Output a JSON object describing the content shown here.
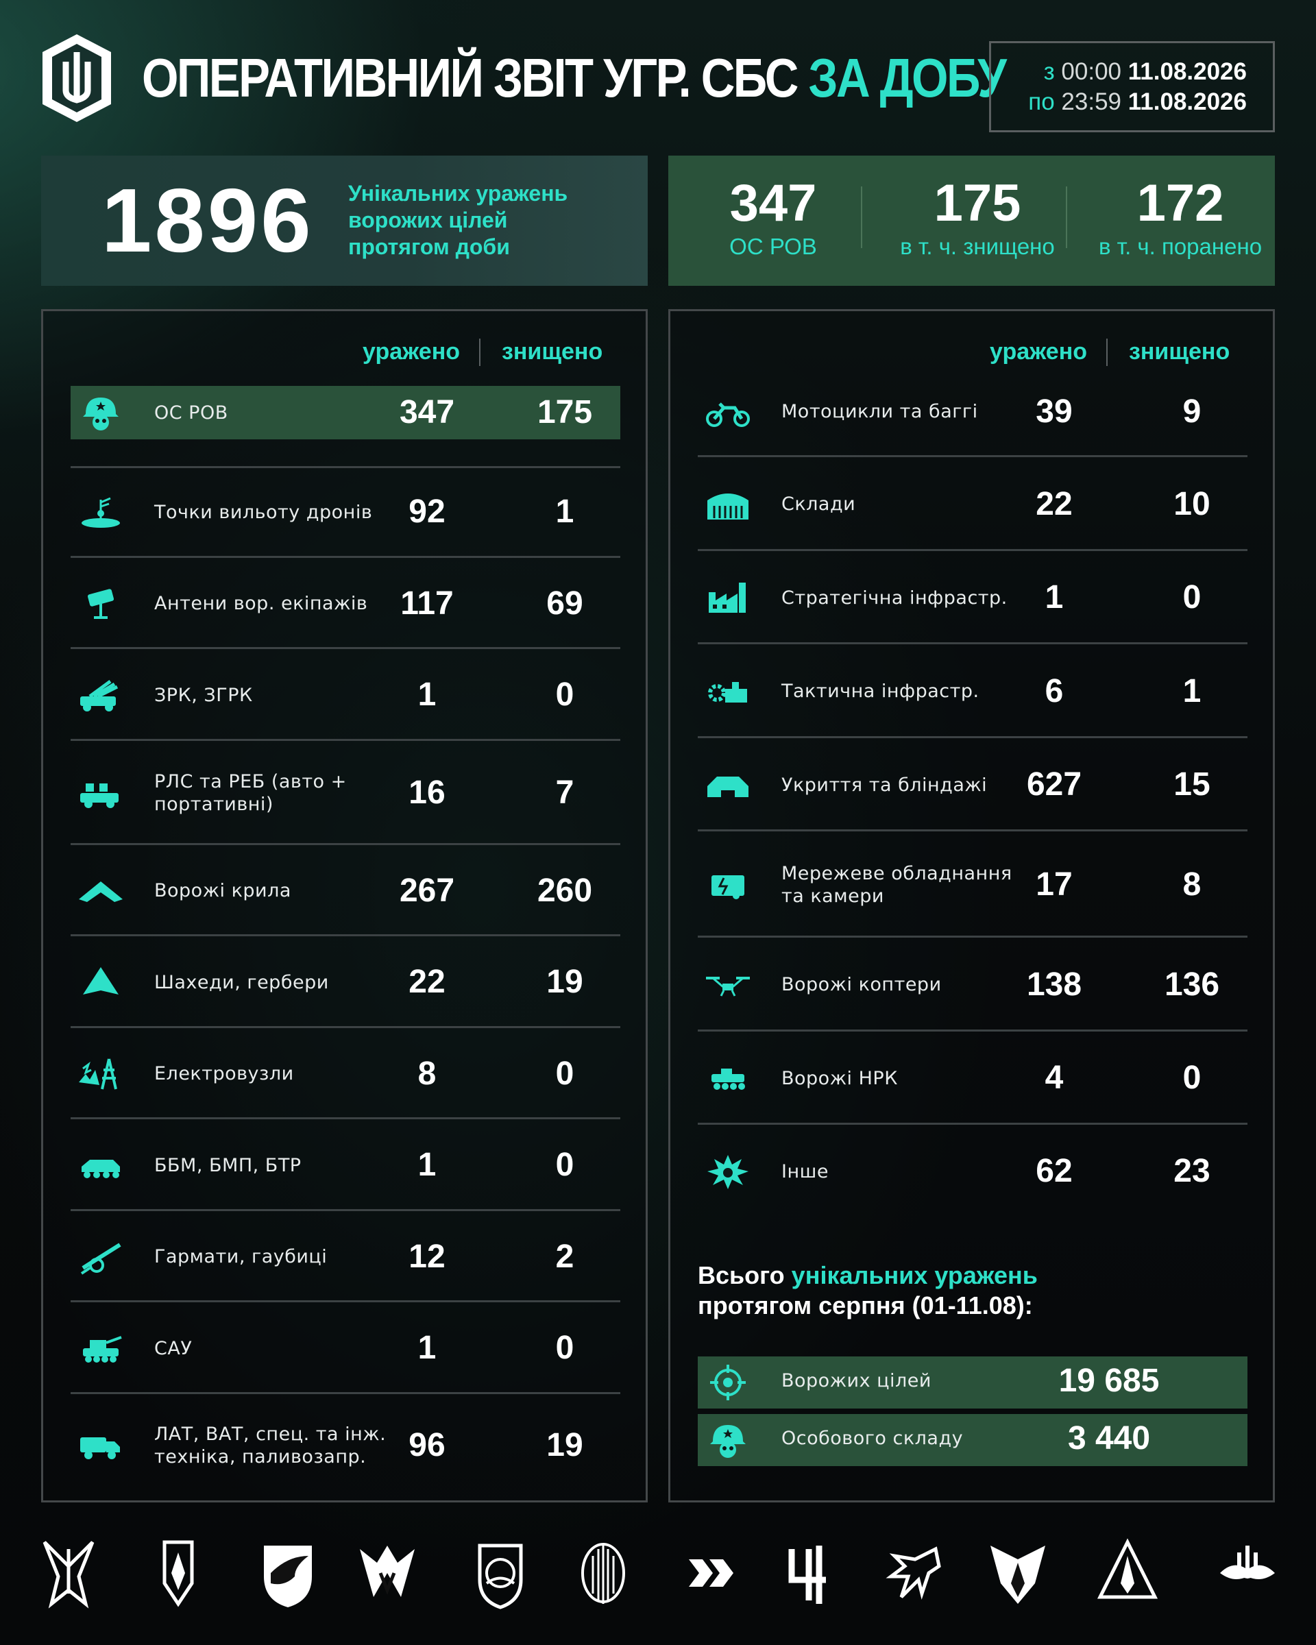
{
  "header": {
    "title_main": "ОПЕРАТИВНИЙ ЗВІТ УГР. СБС",
    "title_accent": "ЗА ДОБУ",
    "from_label": "з",
    "from_time": "00:00",
    "from_date": "11.08.2026",
    "to_label": "по",
    "to_time": "23:59",
    "to_date": "11.08.2026"
  },
  "summary": {
    "unique_hits": "1896",
    "unique_hits_label_1": "Унікальних уражень",
    "unique_hits_label_2": "ворожих цілей",
    "unique_hits_label_3": "протягом доби",
    "personnel_total": "347",
    "personnel_total_label": "ОС РОВ",
    "killed": "175",
    "killed_label": "в т. ч. знищено",
    "wounded": "172",
    "wounded_label": "в т. ч. поранено"
  },
  "columns": {
    "hit": "уражено",
    "destroyed": "знищено"
  },
  "left_rows": [
    {
      "name": "ОС РОВ",
      "hit": "347",
      "destroyed": "175",
      "icon": "soldier-helmet-icon"
    },
    {
      "name": "Точки вильоту дронів",
      "hit": "92",
      "destroyed": "1",
      "icon": "antenna-point-icon"
    },
    {
      "name": "Антени вор. екіпажів",
      "hit": "117",
      "destroyed": "69",
      "icon": "dish-antenna-icon"
    },
    {
      "name": "ЗРК, ЗГРК",
      "hit": "1",
      "destroyed": "0",
      "icon": "sam-launcher-icon"
    },
    {
      "name": "РЛС та РЕБ (авто +",
      "name2": "портативні)",
      "hit": "16",
      "destroyed": "7",
      "icon": "radar-truck-icon"
    },
    {
      "name": "Ворожі крила",
      "hit": "267",
      "destroyed": "260",
      "icon": "wing-drone-icon"
    },
    {
      "name": "Шахеди, гербери",
      "hit": "22",
      "destroyed": "19",
      "icon": "shahed-icon"
    },
    {
      "name": "Електровузли",
      "hit": "8",
      "destroyed": "0",
      "icon": "power-tower-icon"
    },
    {
      "name": "ББМ, БМП, БТР",
      "hit": "1",
      "destroyed": "0",
      "icon": "apc-icon"
    },
    {
      "name": "Гармати, гаубиці",
      "hit": "12",
      "destroyed": "2",
      "icon": "howitzer-icon"
    },
    {
      "name": "САУ",
      "hit": "1",
      "destroyed": "0",
      "icon": "spg-icon"
    },
    {
      "name": "ЛАТ, ВАТ, спец. та інж.",
      "name2": "техніка, паливозапр.",
      "hit": "96",
      "destroyed": "19",
      "icon": "truck-icon"
    }
  ],
  "right_rows": [
    {
      "name": "Мотоцикли та баггі",
      "hit": "39",
      "destroyed": "9",
      "icon": "motorcycle-icon"
    },
    {
      "name": "Склади",
      "hit": "22",
      "destroyed": "10",
      "icon": "warehouse-icon"
    },
    {
      "name": "Стратегічна інфрастр.",
      "hit": "1",
      "destroyed": "0",
      "icon": "factory-icon"
    },
    {
      "name": "Тактична інфрастр.",
      "hit": "6",
      "destroyed": "1",
      "icon": "gear-building-icon"
    },
    {
      "name": "Укриття та бліндажі",
      "hit": "627",
      "destroyed": "15",
      "icon": "bunker-icon"
    },
    {
      "name": "Мережеве обладнання",
      "name2": "та камери",
      "hit": "17",
      "destroyed": "8",
      "icon": "network-device-icon"
    },
    {
      "name": "Ворожі коптери",
      "hit": "138",
      "destroyed": "136",
      "icon": "quadcopter-icon"
    },
    {
      "name": "Ворожі НРК",
      "hit": "4",
      "destroyed": "0",
      "icon": "ugv-icon"
    },
    {
      "name": "Інше",
      "hit": "62",
      "destroyed": "23",
      "icon": "explosion-icon"
    }
  ],
  "totals": {
    "title_1": "Всього",
    "title_accent": "унікальних уражень",
    "title_2": "протягом серпня (01-11.08):",
    "targets_label": "Ворожих цілей",
    "targets_value": "19 685",
    "personnel_label": "Особового складу",
    "personnel_value": "3 440"
  },
  "colors": {
    "accent": "#2ee0c8",
    "highlight": "#2a523a",
    "background": "#070a0b"
  }
}
